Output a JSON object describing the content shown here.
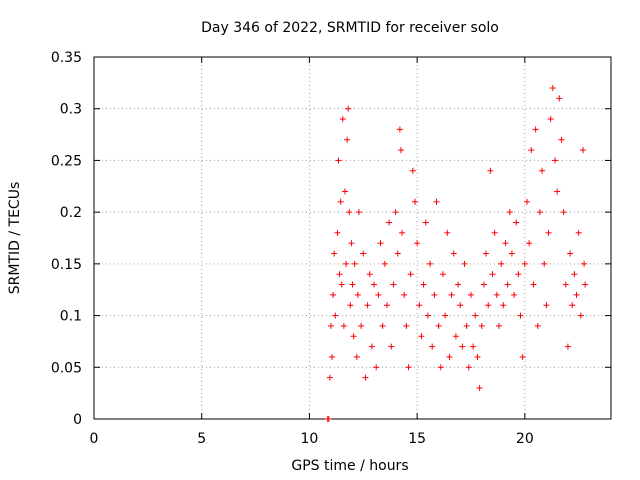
{
  "chart_data": {
    "type": "scatter",
    "title": "Day 346 of 2022, SRMTID for receiver solo",
    "xlabel": "GPS time / hours",
    "ylabel": "SRMTID / TECUs",
    "xlim": [
      0,
      24
    ],
    "ylim": [
      0,
      0.35
    ],
    "xticks": [
      0,
      5,
      10,
      15,
      20
    ],
    "xtick_labels": [
      "0",
      "5",
      "10",
      "15",
      "20"
    ],
    "yticks": [
      0,
      0.05,
      0.1,
      0.15,
      0.2,
      0.25,
      0.3,
      0.35
    ],
    "ytick_labels": [
      "0",
      "0.05",
      "0.1",
      "0.15",
      "0.2",
      "0.25",
      "0.3",
      "0.35"
    ],
    "grid": true,
    "marker": "+",
    "color": "#ff0000",
    "series": [
      {
        "name": "SRMTID",
        "points": [
          [
            10.85,
            0.0
          ],
          [
            10.9,
            0.0
          ],
          [
            10.95,
            0.04
          ],
          [
            11.0,
            0.09
          ],
          [
            11.05,
            0.06
          ],
          [
            11.1,
            0.12
          ],
          [
            11.15,
            0.16
          ],
          [
            11.2,
            0.1
          ],
          [
            11.3,
            0.18
          ],
          [
            11.35,
            0.25
          ],
          [
            11.4,
            0.14
          ],
          [
            11.45,
            0.21
          ],
          [
            11.5,
            0.13
          ],
          [
            11.55,
            0.29
          ],
          [
            11.6,
            0.09
          ],
          [
            11.65,
            0.22
          ],
          [
            11.7,
            0.15
          ],
          [
            11.75,
            0.27
          ],
          [
            11.8,
            0.3
          ],
          [
            11.85,
            0.2
          ],
          [
            11.9,
            0.11
          ],
          [
            11.95,
            0.17
          ],
          [
            12.0,
            0.13
          ],
          [
            12.05,
            0.08
          ],
          [
            12.1,
            0.15
          ],
          [
            12.2,
            0.06
          ],
          [
            12.25,
            0.12
          ],
          [
            12.3,
            0.2
          ],
          [
            12.4,
            0.09
          ],
          [
            12.5,
            0.16
          ],
          [
            12.6,
            0.04
          ],
          [
            12.7,
            0.11
          ],
          [
            12.8,
            0.14
          ],
          [
            12.9,
            0.07
          ],
          [
            13.0,
            0.13
          ],
          [
            13.1,
            0.05
          ],
          [
            13.2,
            0.12
          ],
          [
            13.3,
            0.17
          ],
          [
            13.4,
            0.09
          ],
          [
            13.5,
            0.15
          ],
          [
            13.6,
            0.11
          ],
          [
            13.7,
            0.19
          ],
          [
            13.8,
            0.07
          ],
          [
            13.9,
            0.13
          ],
          [
            14.0,
            0.2
          ],
          [
            14.1,
            0.16
          ],
          [
            14.2,
            0.28
          ],
          [
            14.25,
            0.26
          ],
          [
            14.3,
            0.18
          ],
          [
            14.4,
            0.12
          ],
          [
            14.5,
            0.09
          ],
          [
            14.6,
            0.05
          ],
          [
            14.7,
            0.14
          ],
          [
            14.8,
            0.24
          ],
          [
            14.9,
            0.21
          ],
          [
            15.0,
            0.17
          ],
          [
            15.1,
            0.11
          ],
          [
            15.2,
            0.08
          ],
          [
            15.3,
            0.13
          ],
          [
            15.4,
            0.19
          ],
          [
            15.5,
            0.1
          ],
          [
            15.6,
            0.15
          ],
          [
            15.7,
            0.07
          ],
          [
            15.8,
            0.12
          ],
          [
            15.9,
            0.21
          ],
          [
            16.0,
            0.09
          ],
          [
            16.1,
            0.05
          ],
          [
            16.2,
            0.14
          ],
          [
            16.3,
            0.1
          ],
          [
            16.4,
            0.18
          ],
          [
            16.5,
            0.06
          ],
          [
            16.6,
            0.12
          ],
          [
            16.7,
            0.16
          ],
          [
            16.8,
            0.08
          ],
          [
            16.9,
            0.13
          ],
          [
            17.0,
            0.11
          ],
          [
            17.1,
            0.07
          ],
          [
            17.2,
            0.15
          ],
          [
            17.3,
            0.09
          ],
          [
            17.4,
            0.05
          ],
          [
            17.5,
            0.12
          ],
          [
            17.6,
            0.07
          ],
          [
            17.7,
            0.1
          ],
          [
            17.8,
            0.06
          ],
          [
            17.9,
            0.03
          ],
          [
            18.0,
            0.09
          ],
          [
            18.1,
            0.13
          ],
          [
            18.2,
            0.16
          ],
          [
            18.3,
            0.11
          ],
          [
            18.4,
            0.24
          ],
          [
            18.5,
            0.14
          ],
          [
            18.6,
            0.18
          ],
          [
            18.7,
            0.12
          ],
          [
            18.8,
            0.09
          ],
          [
            18.9,
            0.15
          ],
          [
            19.0,
            0.11
          ],
          [
            19.1,
            0.17
          ],
          [
            19.2,
            0.13
          ],
          [
            19.3,
            0.2
          ],
          [
            19.4,
            0.16
          ],
          [
            19.5,
            0.12
          ],
          [
            19.6,
            0.19
          ],
          [
            19.7,
            0.14
          ],
          [
            19.8,
            0.1
          ],
          [
            19.9,
            0.06
          ],
          [
            20.0,
            0.15
          ],
          [
            20.1,
            0.21
          ],
          [
            20.2,
            0.17
          ],
          [
            20.3,
            0.26
          ],
          [
            20.4,
            0.13
          ],
          [
            20.5,
            0.28
          ],
          [
            20.6,
            0.09
          ],
          [
            20.7,
            0.2
          ],
          [
            20.8,
            0.24
          ],
          [
            20.9,
            0.15
          ],
          [
            21.0,
            0.11
          ],
          [
            21.1,
            0.18
          ],
          [
            21.2,
            0.29
          ],
          [
            21.3,
            0.32
          ],
          [
            21.4,
            0.25
          ],
          [
            21.5,
            0.22
          ],
          [
            21.6,
            0.31
          ],
          [
            21.7,
            0.27
          ],
          [
            21.8,
            0.2
          ],
          [
            21.9,
            0.13
          ],
          [
            22.0,
            0.07
          ],
          [
            22.1,
            0.16
          ],
          [
            22.2,
            0.11
          ],
          [
            22.3,
            0.14
          ],
          [
            22.4,
            0.12
          ],
          [
            22.5,
            0.18
          ],
          [
            22.6,
            0.1
          ],
          [
            22.7,
            0.26
          ],
          [
            22.75,
            0.15
          ],
          [
            22.8,
            0.13
          ]
        ]
      }
    ]
  }
}
